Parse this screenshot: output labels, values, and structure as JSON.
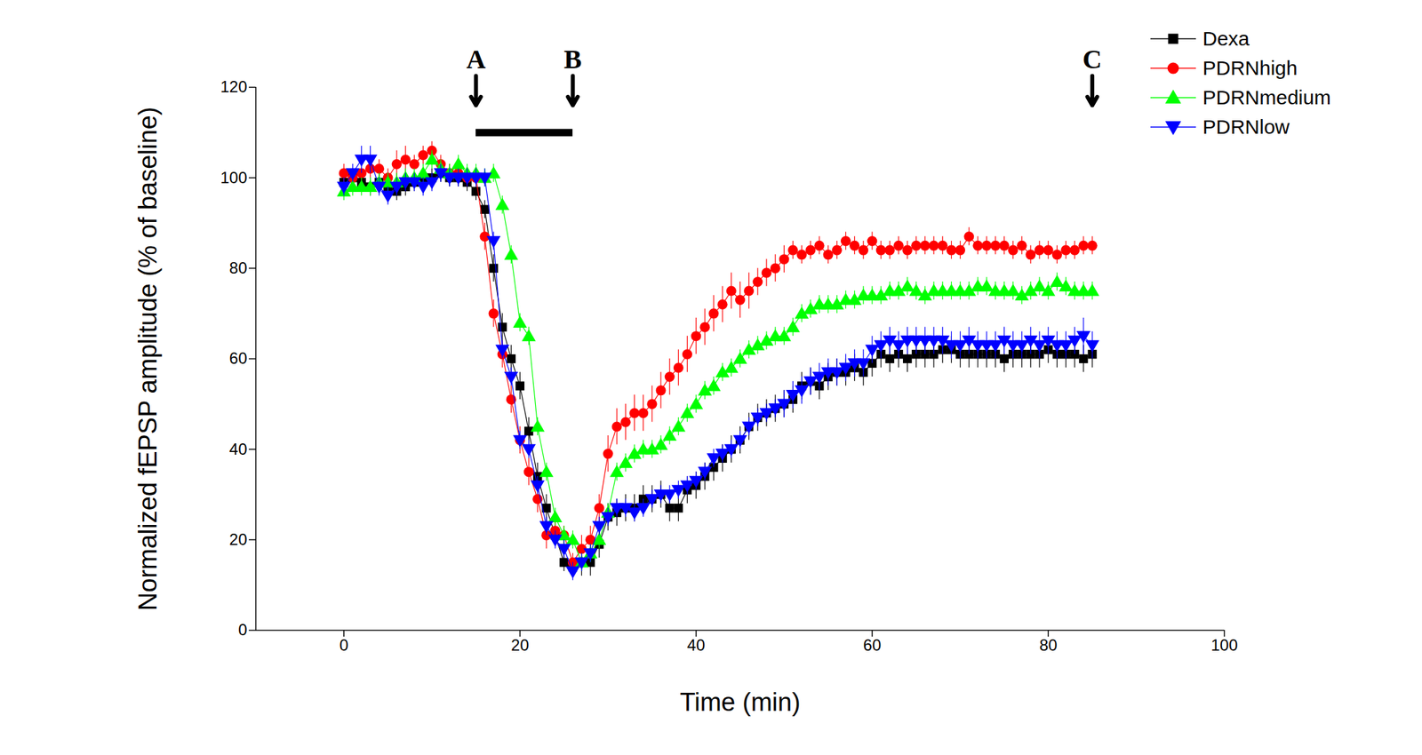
{
  "chart_data": {
    "type": "line",
    "x_label": "Time (min)",
    "y_label": "Normalized fEPSP amplitude (% of baseline)",
    "xlim": [
      -10,
      100
    ],
    "xticks": [
      0,
      20,
      40,
      60,
      80,
      100
    ],
    "ylim": [
      0,
      120
    ],
    "yticks": [
      0,
      20,
      40,
      60,
      80,
      100,
      120
    ],
    "legend": "upper right",
    "annotations": [
      {
        "text": "A",
        "x": 15,
        "y": 116
      },
      {
        "text": "B",
        "x": 26,
        "y": 116
      },
      {
        "text": "C",
        "x": 85,
        "y": 116
      }
    ],
    "treatment_bar": {
      "x1": 15,
      "x2": 26,
      "y": 110
    },
    "x": [
      0,
      1,
      2,
      3,
      4,
      5,
      6,
      7,
      8,
      9,
      10,
      11,
      12,
      13,
      14,
      15,
      16,
      17,
      18,
      19,
      20,
      21,
      22,
      23,
      24,
      25,
      26,
      27,
      28,
      29,
      30,
      31,
      32,
      33,
      34,
      35,
      36,
      37,
      38,
      39,
      40,
      41,
      42,
      43,
      44,
      45,
      46,
      47,
      48,
      49,
      50,
      51,
      52,
      53,
      54,
      55,
      56,
      57,
      58,
      59,
      60,
      61,
      62,
      63,
      64,
      65,
      66,
      67,
      68,
      69,
      70,
      71,
      72,
      73,
      74,
      75,
      76,
      77,
      78,
      79,
      80,
      81,
      82,
      83,
      84,
      85
    ],
    "series": [
      {
        "name": "Dexa",
        "color": "#000000",
        "marker": "square",
        "values": [
          99,
          100,
          99,
          98,
          99,
          98,
          97,
          98,
          99,
          100,
          100,
          101,
          100,
          100,
          99,
          97,
          93,
          80,
          67,
          60,
          54,
          44,
          34,
          27,
          21,
          15,
          14,
          15,
          15,
          19,
          25,
          26,
          27,
          27,
          29,
          29,
          30,
          27,
          27,
          31,
          32,
          34,
          36,
          38,
          40,
          42,
          45,
          47,
          48,
          49,
          50,
          51,
          54,
          55,
          54,
          56,
          57,
          57,
          58,
          57,
          59,
          61,
          60,
          61,
          60,
          61,
          61,
          61,
          62,
          62,
          61,
          61,
          61,
          61,
          61,
          60,
          61,
          61,
          61,
          61,
          62,
          61,
          61,
          61,
          60,
          61
        ],
        "errors": [
          2,
          2,
          2,
          2,
          2,
          2,
          2,
          2,
          2,
          2,
          2,
          2,
          2,
          2,
          2,
          2,
          2,
          3,
          3,
          3,
          3,
          3,
          3,
          3,
          2,
          2,
          2,
          3,
          3,
          3,
          3,
          3,
          3,
          3,
          3,
          3,
          3,
          3,
          3,
          3,
          3,
          3,
          3,
          3,
          3,
          3,
          3,
          3,
          3,
          3,
          3,
          3,
          3,
          3,
          3,
          3,
          3,
          3,
          3,
          3,
          3,
          3,
          3,
          3,
          3,
          3,
          3,
          3,
          3,
          3,
          3,
          3,
          3,
          3,
          3,
          3,
          3,
          3,
          3,
          3,
          3,
          3,
          3,
          3,
          3,
          3
        ]
      },
      {
        "name": "PDRNhigh",
        "color": "#ff0000",
        "marker": "circle",
        "values": [
          101,
          100,
          101,
          102,
          102,
          100,
          103,
          104,
          103,
          105,
          106,
          103,
          101,
          101,
          100,
          100,
          87,
          70,
          61,
          51,
          42,
          35,
          29,
          21,
          22,
          21,
          15,
          18,
          20,
          27,
          39,
          45,
          46,
          48,
          48,
          50,
          53,
          56,
          58,
          61,
          65,
          67,
          70,
          72,
          75,
          73,
          75,
          77,
          79,
          80,
          82,
          84,
          83,
          84,
          85,
          83,
          84,
          86,
          85,
          84,
          86,
          84,
          84,
          85,
          84,
          85,
          85,
          85,
          85,
          84,
          84,
          87,
          85,
          85,
          85,
          85,
          84,
          85,
          83,
          84,
          84,
          83,
          84,
          84,
          85,
          85
        ],
        "errors": [
          2,
          2,
          2,
          2,
          2,
          2,
          3,
          3,
          2,
          2,
          2,
          2,
          2,
          2,
          2,
          2,
          3,
          3,
          3,
          3,
          3,
          3,
          3,
          3,
          2,
          2,
          2,
          3,
          3,
          3,
          4,
          4,
          4,
          4,
          4,
          4,
          4,
          4,
          4,
          4,
          4,
          4,
          4,
          4,
          4,
          4,
          4,
          3,
          3,
          3,
          3,
          2,
          2,
          2,
          2,
          2,
          2,
          2,
          2,
          2,
          2,
          2,
          2,
          2,
          2,
          2,
          2,
          2,
          2,
          2,
          2,
          2,
          2,
          2,
          2,
          2,
          2,
          2,
          2,
          2,
          2,
          2,
          2,
          2,
          2,
          2
        ]
      },
      {
        "name": "PDRNmedium",
        "color": "#00ff00",
        "marker": "triangle-up",
        "values": [
          97,
          98,
          98,
          98,
          99,
          99,
          99,
          100,
          100,
          101,
          104,
          102,
          101,
          103,
          101,
          101,
          100,
          101,
          94,
          83,
          68,
          65,
          45,
          35,
          25,
          21,
          20,
          15,
          17,
          20,
          26,
          35,
          37,
          39,
          40,
          40,
          41,
          43,
          45,
          48,
          50,
          53,
          54,
          57,
          58,
          60,
          62,
          63,
          64,
          65,
          65,
          67,
          70,
          71,
          72,
          72,
          72,
          73,
          73,
          74,
          74,
          74,
          75,
          75,
          76,
          75,
          74,
          75,
          75,
          75,
          75,
          75,
          76,
          76,
          75,
          75,
          75,
          74,
          75,
          76,
          75,
          77,
          76,
          75,
          75,
          75
        ],
        "errors": [
          2,
          2,
          2,
          2,
          2,
          2,
          2,
          2,
          2,
          2,
          2,
          2,
          2,
          2,
          2,
          2,
          2,
          2,
          2,
          2,
          2,
          2,
          2,
          2,
          2,
          2,
          2,
          2,
          2,
          2,
          2,
          2,
          2,
          2,
          2,
          2,
          2,
          2,
          2,
          2,
          2,
          2,
          2,
          2,
          2,
          2,
          2,
          2,
          2,
          2,
          2,
          2,
          2,
          2,
          2,
          2,
          2,
          2,
          2,
          2,
          2,
          2,
          2,
          2,
          2,
          2,
          2,
          2,
          2,
          2,
          2,
          2,
          2,
          2,
          2,
          2,
          2,
          2,
          2,
          2,
          2,
          2,
          2,
          2,
          2,
          2
        ]
      },
      {
        "name": "PDRNlow",
        "color": "#0000ff",
        "marker": "triangle-down",
        "values": [
          98,
          101,
          104,
          104,
          98,
          96,
          98,
          99,
          99,
          98,
          99,
          101,
          100,
          100,
          100,
          100,
          100,
          86,
          62,
          56,
          42,
          40,
          32,
          23,
          20,
          18,
          13,
          15,
          17,
          23,
          25,
          27,
          27,
          26,
          27,
          29,
          30,
          30,
          31,
          32,
          33,
          35,
          38,
          39,
          40,
          42,
          45,
          47,
          48,
          49,
          50,
          52,
          53,
          55,
          56,
          57,
          57,
          58,
          59,
          59,
          62,
          63,
          64,
          63,
          64,
          64,
          64,
          64,
          64,
          63,
          63,
          64,
          63,
          63,
          63,
          64,
          63,
          63,
          64,
          63,
          64,
          63,
          63,
          64,
          65,
          63
        ],
        "errors": [
          2,
          2,
          3,
          3,
          2,
          2,
          2,
          2,
          2,
          2,
          2,
          2,
          2,
          2,
          2,
          2,
          2,
          2,
          2,
          2,
          2,
          2,
          2,
          2,
          2,
          2,
          2,
          2,
          2,
          2,
          2,
          2,
          2,
          2,
          2,
          2,
          2,
          2,
          2,
          2,
          2,
          2,
          2,
          2,
          2,
          2,
          2,
          2,
          2,
          2,
          3,
          3,
          3,
          3,
          3,
          3,
          3,
          3,
          3,
          3,
          3,
          3,
          3,
          3,
          3,
          3,
          3,
          3,
          3,
          3,
          3,
          3,
          3,
          3,
          3,
          3,
          3,
          3,
          3,
          3,
          3,
          3,
          3,
          3,
          4,
          3
        ]
      }
    ]
  }
}
